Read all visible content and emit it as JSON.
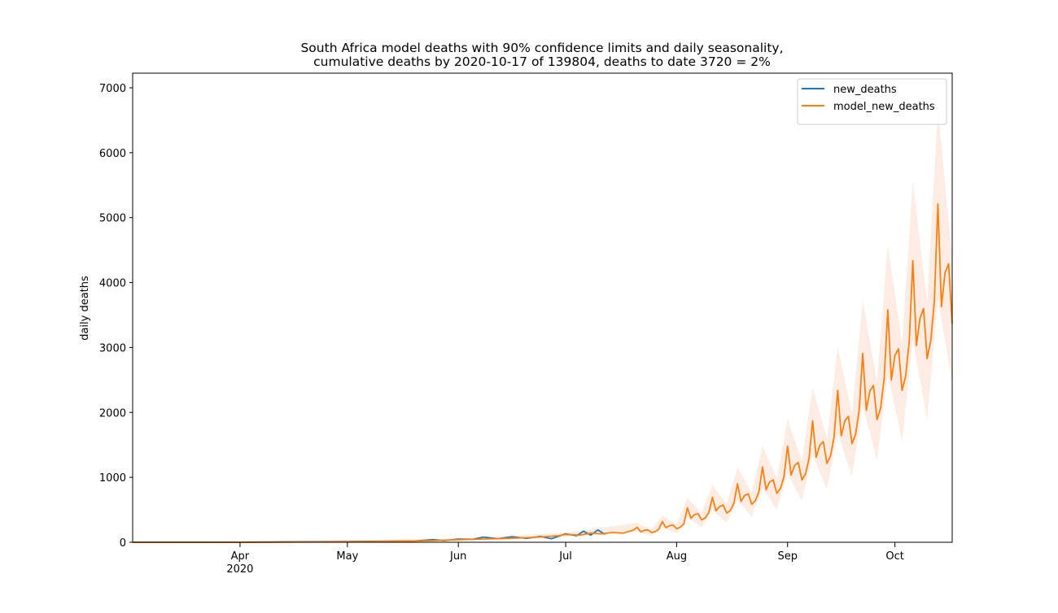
{
  "chart_data": {
    "type": "line",
    "title_lines": [
      "South Africa model deaths with 90% confidence limits and daily seasonality,",
      "cumulative deaths by 2020-10-17 of 139804, deaths to date 3720 = 2%"
    ],
    "ylabel": "daily deaths",
    "xlim": [
      "2020-03-02",
      "2020-10-17"
    ],
    "xticks": [
      {
        "value": "2020-04-01",
        "label": "Apr"
      },
      {
        "value": "2020-05-01",
        "label": "May"
      },
      {
        "value": "2020-06-01",
        "label": "Jun"
      },
      {
        "value": "2020-07-01",
        "label": "Jul"
      },
      {
        "value": "2020-08-01",
        "label": "Aug"
      },
      {
        "value": "2020-09-01",
        "label": "Sep"
      },
      {
        "value": "2020-10-01",
        "label": "Oct"
      }
    ],
    "year_label": "2020",
    "ylim": [
      0,
      7225
    ],
    "yticks": [
      0,
      1000,
      2000,
      3000,
      4000,
      5000,
      6000,
      7000
    ],
    "legend": "upper right",
    "series": [
      {
        "name": "new_deaths",
        "color": "#1f77b4",
        "x": [
          "2020-03-02",
          "2020-04-01",
          "2020-05-01",
          "2020-05-20",
          "2020-05-25",
          "2020-05-28",
          "2020-06-01",
          "2020-06-05",
          "2020-06-08",
          "2020-06-12",
          "2020-06-16",
          "2020-06-20",
          "2020-06-24",
          "2020-06-27",
          "2020-07-01",
          "2020-07-04",
          "2020-07-06",
          "2020-07-08",
          "2020-07-10",
          "2020-07-12"
        ],
        "values": [
          0,
          1,
          10,
          20,
          40,
          25,
          50,
          45,
          80,
          55,
          85,
          60,
          90,
          55,
          130,
          100,
          170,
          110,
          190,
          120
        ]
      },
      {
        "name": "model_new_deaths",
        "color": "#ff7f0e",
        "x": [
          "2020-03-02",
          "2020-03-15",
          "2020-04-01",
          "2020-04-15",
          "2020-05-01",
          "2020-05-15",
          "2020-05-25",
          "2020-06-01",
          "2020-06-08",
          "2020-06-15",
          "2020-06-22",
          "2020-06-29",
          "2020-07-01",
          "2020-07-05",
          "2020-07-08",
          "2020-07-11",
          "2020-07-14",
          "2020-07-17",
          "2020-07-20",
          "2020-07-21",
          "2020-07-22",
          "2020-07-23",
          "2020-07-24",
          "2020-07-25",
          "2020-07-26",
          "2020-07-27",
          "2020-07-28",
          "2020-07-29",
          "2020-07-30",
          "2020-07-31",
          "2020-08-01",
          "2020-08-02",
          "2020-08-03",
          "2020-08-04",
          "2020-08-05",
          "2020-08-06",
          "2020-08-07",
          "2020-08-08",
          "2020-08-09",
          "2020-08-10",
          "2020-08-11",
          "2020-08-12",
          "2020-08-13",
          "2020-08-14",
          "2020-08-15",
          "2020-08-16",
          "2020-08-17",
          "2020-08-18",
          "2020-08-19",
          "2020-08-20",
          "2020-08-21",
          "2020-08-22",
          "2020-08-23",
          "2020-08-24",
          "2020-08-25",
          "2020-08-26",
          "2020-08-27",
          "2020-08-28",
          "2020-08-29",
          "2020-08-30",
          "2020-08-31",
          "2020-09-01",
          "2020-09-02",
          "2020-09-03",
          "2020-09-04",
          "2020-09-05",
          "2020-09-06",
          "2020-09-07",
          "2020-09-08",
          "2020-09-09",
          "2020-09-10",
          "2020-09-11",
          "2020-09-12",
          "2020-09-13",
          "2020-09-14",
          "2020-09-15",
          "2020-09-16",
          "2020-09-17",
          "2020-09-18",
          "2020-09-19",
          "2020-09-20",
          "2020-09-21",
          "2020-09-22",
          "2020-09-23",
          "2020-09-24",
          "2020-09-25",
          "2020-09-26",
          "2020-09-27",
          "2020-09-28",
          "2020-09-29",
          "2020-09-30",
          "2020-10-01",
          "2020-10-02",
          "2020-10-03",
          "2020-10-04",
          "2020-10-05",
          "2020-10-06",
          "2020-10-07",
          "2020-10-08",
          "2020-10-09",
          "2020-10-10",
          "2020-10-11",
          "2020-10-12",
          "2020-10-13",
          "2020-10-14",
          "2020-10-15",
          "2020-10-16",
          "2020-10-17"
        ],
        "values": [
          0,
          0,
          1,
          3,
          8,
          15,
          25,
          40,
          50,
          60,
          75,
          100,
          120,
          110,
          140,
          130,
          150,
          140,
          190,
          230,
          160,
          185,
          190,
          150,
          165,
          200,
          320,
          225,
          255,
          265,
          210,
          230,
          280,
          530,
          370,
          425,
          440,
          345,
          375,
          460,
          690,
          485,
          550,
          575,
          450,
          490,
          600,
          900,
          630,
          720,
          745,
          585,
          640,
          780,
          1160,
          810,
          930,
          960,
          755,
          825,
          1010,
          1480,
          1035,
          1185,
          1230,
          960,
          1050,
          1290,
          1870,
          1310,
          1495,
          1550,
          1215,
          1330,
          1625,
          2340,
          1640,
          1870,
          1940,
          1520,
          1660,
          2035,
          2910,
          2035,
          2330,
          2415,
          1890,
          2065,
          2530,
          3580,
          2500,
          2880,
          2980,
          2340,
          2560,
          3100,
          4340,
          3030,
          3450,
          3600,
          2830,
          3100,
          3700,
          5210,
          3630,
          4150,
          4290,
          3370
        ]
      }
    ],
    "band": {
      "color": "#fdece3",
      "x": [
        "2020-03-02",
        "2020-06-01",
        "2020-07-01",
        "2020-07-21",
        "2020-07-25",
        "2020-07-28",
        "2020-08-01",
        "2020-08-04",
        "2020-08-08",
        "2020-08-11",
        "2020-08-15",
        "2020-08-18",
        "2020-08-22",
        "2020-08-25",
        "2020-08-29",
        "2020-09-01",
        "2020-09-05",
        "2020-09-08",
        "2020-09-12",
        "2020-09-15",
        "2020-09-19",
        "2020-09-22",
        "2020-09-26",
        "2020-09-29",
        "2020-10-03",
        "2020-10-06",
        "2020-10-10",
        "2020-10-13",
        "2020-10-17"
      ],
      "upper": [
        0,
        55,
        150,
        300,
        200,
        410,
        280,
        680,
        450,
        880,
        590,
        1150,
        770,
        1480,
        990,
        1900,
        1260,
        2390,
        1590,
        3000,
        1990,
        3720,
        2480,
        4580,
        3070,
        5560,
        3710,
        6670,
        4400
      ],
      "lower": [
        0,
        30,
        90,
        165,
        100,
        230,
        140,
        380,
        230,
        500,
        300,
        650,
        390,
        835,
        500,
        1065,
        640,
        1345,
        810,
        1685,
        1010,
        2095,
        1260,
        2580,
        1560,
        3125,
        1880,
        3750,
        2450
      ]
    }
  }
}
